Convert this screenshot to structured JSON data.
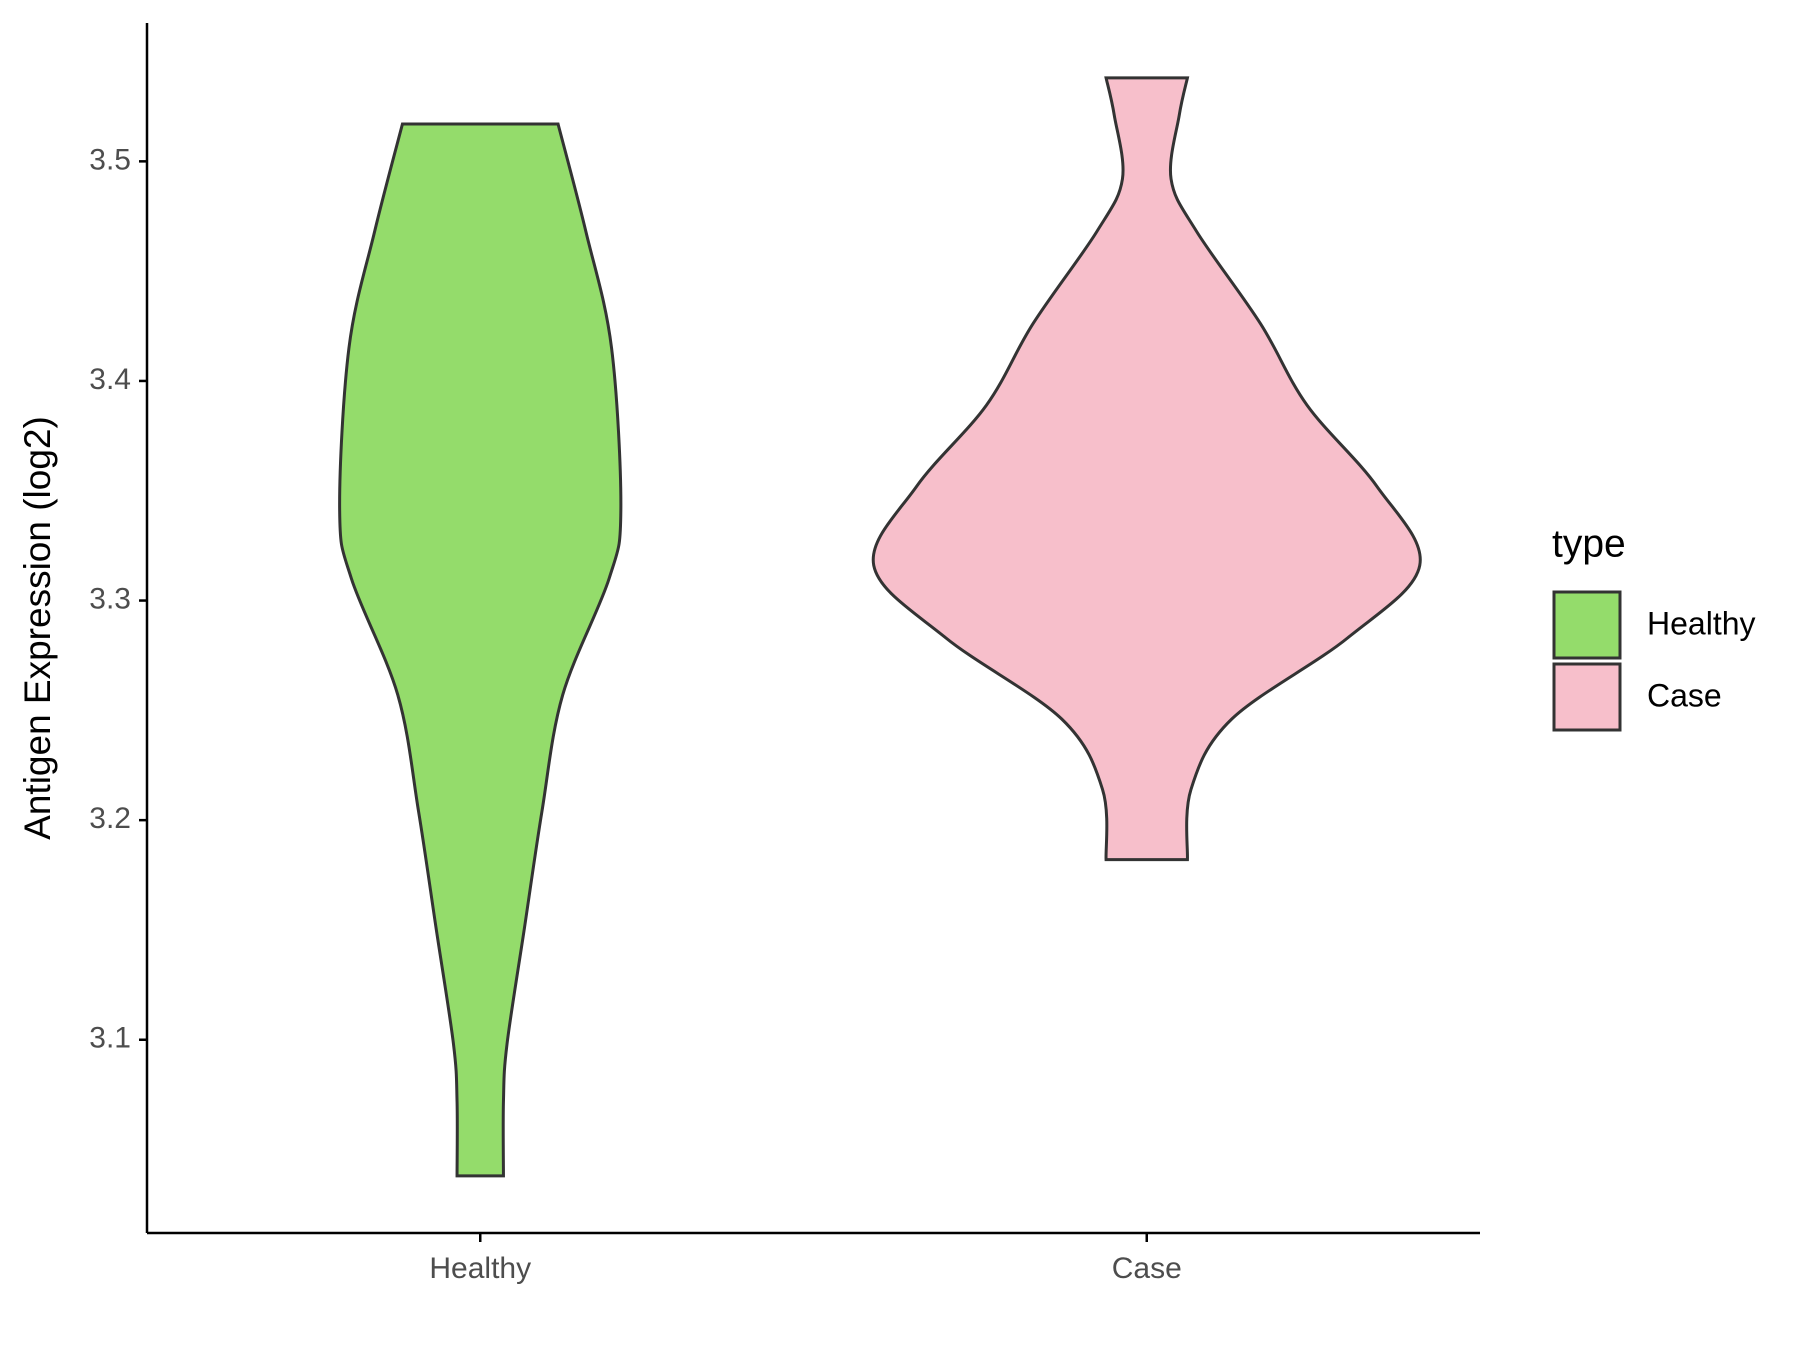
{
  "chart_data": {
    "type": "violin",
    "y_label": "Antigen Expression (log2)",
    "categories": [
      "Healthy",
      "Case"
    ],
    "legend_title": "type",
    "legend_position": "right",
    "ylim": [
      3.012,
      3.563
    ],
    "yticks": [
      3.1,
      3.2,
      3.3,
      3.4,
      3.5
    ],
    "series": [
      {
        "name": "Healthy",
        "color": "#94dc6b",
        "y": [
          3.517,
          3.468,
          3.415,
          3.341,
          3.31,
          3.257,
          3.204,
          3.151,
          3.098,
          3.072,
          3.038
        ],
        "density": [
          0.285,
          0.387,
          0.481,
          0.515,
          0.472,
          0.302,
          0.226,
          0.162,
          0.098,
          0.085,
          0.085
        ]
      },
      {
        "name": "Case",
        "color": "#f7bfcb",
        "y": [
          3.538,
          3.521,
          3.492,
          3.468,
          3.426,
          3.389,
          3.352,
          3.316,
          3.283,
          3.246,
          3.214,
          3.182
        ],
        "density": [
          0.149,
          0.119,
          0.089,
          0.183,
          0.417,
          0.587,
          0.843,
          1,
          0.736,
          0.311,
          0.162,
          0.149
        ]
      }
    ]
  }
}
